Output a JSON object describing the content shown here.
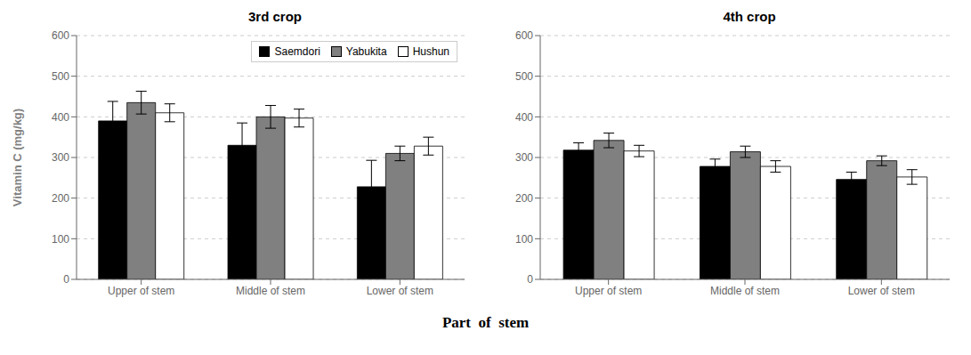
{
  "chart_data": [
    {
      "type": "bar",
      "title": "3rd crop",
      "categories": [
        "Upper of stem",
        "Middle of stem",
        "Lower of stem"
      ],
      "series": [
        {
          "name": "Saemdori",
          "color": "#000000",
          "values": [
            390,
            330,
            228
          ],
          "errors": [
            48,
            55,
            65
          ]
        },
        {
          "name": "Yabukita",
          "color": "#808080",
          "values": [
            435,
            400,
            310
          ],
          "errors": [
            28,
            28,
            18
          ]
        },
        {
          "name": "Hushun",
          "color": "#ffffff",
          "values": [
            410,
            397,
            328
          ],
          "errors": [
            22,
            22,
            22
          ]
        }
      ],
      "ylim": [
        0,
        600
      ],
      "yticks": [
        0,
        100,
        200,
        300,
        400,
        500,
        600
      ],
      "ylabel": "Vitamin C (mg/kg)",
      "grid": true,
      "legend": "upper right"
    },
    {
      "type": "bar",
      "title": "4th crop",
      "categories": [
        "Upper of stem",
        "Middle of stem",
        "Lower of stem"
      ],
      "series": [
        {
          "name": "Saemdori",
          "color": "#000000",
          "values": [
            318,
            278,
            246
          ],
          "errors": [
            18,
            18,
            18
          ]
        },
        {
          "name": "Yabukita",
          "color": "#808080",
          "values": [
            342,
            314,
            292
          ],
          "errors": [
            18,
            14,
            12
          ]
        },
        {
          "name": "Hushun",
          "color": "#ffffff",
          "values": [
            316,
            278,
            252
          ],
          "errors": [
            14,
            14,
            18
          ]
        }
      ],
      "ylim": [
        0,
        600
      ],
      "yticks": [
        0,
        100,
        200,
        300,
        400,
        500,
        600
      ],
      "grid": true
    }
  ],
  "xlabel": "Part  of  stem"
}
